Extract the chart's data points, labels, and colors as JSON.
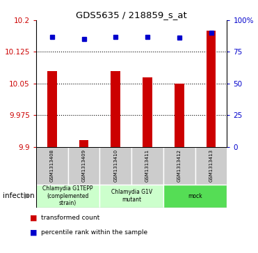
{
  "title": "GDS5635 / 218859_s_at",
  "samples": [
    "GSM1313408",
    "GSM1313409",
    "GSM1313410",
    "GSM1313411",
    "GSM1313412",
    "GSM1313413"
  ],
  "transformed_counts": [
    10.08,
    9.915,
    10.08,
    10.065,
    10.05,
    10.175
  ],
  "percentile_ranks": [
    87,
    85,
    87,
    87,
    86,
    90
  ],
  "ylim_left": [
    9.9,
    10.2
  ],
  "yticks_left": [
    9.9,
    9.975,
    10.05,
    10.125,
    10.2
  ],
  "ytick_labels_left": [
    "9.9",
    "9.975",
    "10.05",
    "10.125",
    "10.2"
  ],
  "ylim_right": [
    0,
    100
  ],
  "yticks_right": [
    0,
    25,
    50,
    75,
    100
  ],
  "ytick_labels_right": [
    "0",
    "25",
    "50",
    "75",
    "100%"
  ],
  "bar_color": "#cc0000",
  "dot_color": "#0000cc",
  "groups": [
    {
      "label": "Chlamydia G1TEPP\n(complemented\nstrain)",
      "start": 0,
      "end": 2,
      "color": "#ccffcc"
    },
    {
      "label": "Chlamydia G1V\nmutant",
      "start": 2,
      "end": 4,
      "color": "#ccffcc"
    },
    {
      "label": "mock",
      "start": 4,
      "end": 6,
      "color": "#55dd55"
    }
  ],
  "group_label": "infection",
  "legend_bar_label": "transformed count",
  "legend_dot_label": "percentile rank within the sample",
  "tick_color_left": "#cc0000",
  "tick_color_right": "#0000cc",
  "sample_box_color": "#cccccc",
  "bar_width": 0.3
}
